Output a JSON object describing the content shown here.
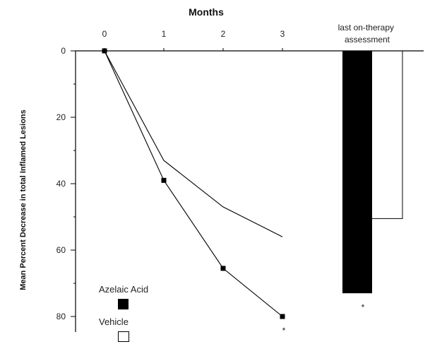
{
  "chart_data": {
    "type": "line",
    "title": "",
    "x_axis_title": "Months",
    "y_axis_title": "Mean Percent Decrease in total Inflamed Lesions",
    "x_ticks": [
      "0",
      "1",
      "2",
      "3"
    ],
    "y_ticks": [
      "0",
      "20",
      "40",
      "60",
      "80"
    ],
    "y_axis_inverted": true,
    "ylim": [
      0,
      85
    ],
    "xlim": [
      0,
      3
    ],
    "series": [
      {
        "name": "Azelaic Acid",
        "x": [
          0,
          1,
          2,
          3
        ],
        "y": [
          0,
          39,
          65.5,
          80
        ],
        "markers": true,
        "color": "#000000"
      },
      {
        "name": "Vehicle",
        "x": [
          0,
          1,
          2,
          3
        ],
        "y": [
          0,
          33,
          47,
          56
        ],
        "markers": false,
        "color": "#000000"
      }
    ],
    "bars": {
      "category": "last on-therapy assessment",
      "series": [
        {
          "name": "Azelaic Acid",
          "value": 73,
          "fill": "#000000"
        },
        {
          "name": "Vehicle",
          "value": 50.5,
          "fill": "#ffffff"
        }
      ]
    },
    "significance_marks": [
      {
        "at": "month 3 Azelaic Acid",
        "text": "*"
      },
      {
        "at": "last on-therapy assessment Azelaic Acid",
        "text": "*"
      }
    ],
    "legend": {
      "placement": "bottom-left",
      "entries": [
        {
          "name": "Azelaic Acid",
          "swatch": "filled"
        },
        {
          "name": "Vehicle",
          "swatch": "open"
        }
      ]
    }
  }
}
